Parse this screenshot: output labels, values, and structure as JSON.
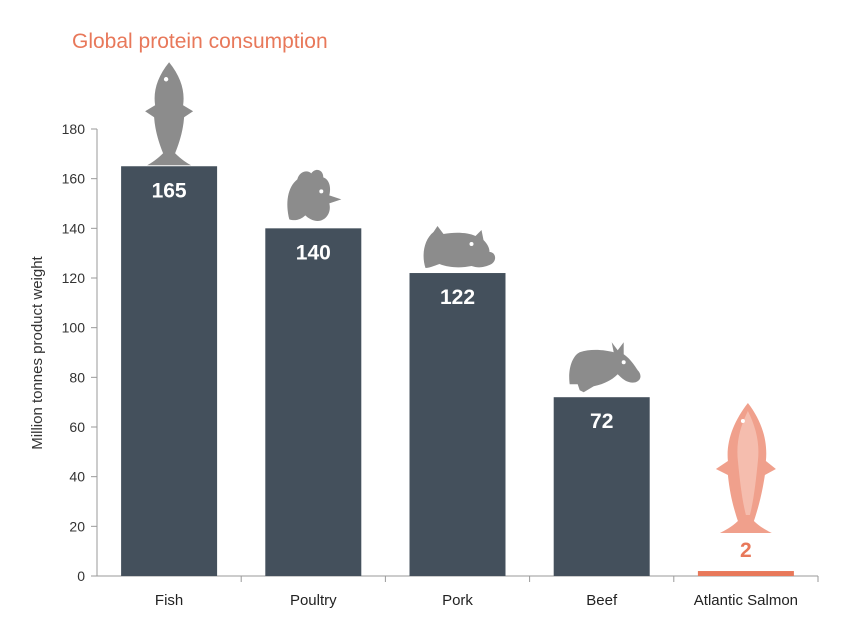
{
  "chart_data": {
    "type": "bar",
    "title": "Global protein consumption",
    "ylabel": "Million tonnes product weight",
    "xlabel": "",
    "categories": [
      "Fish",
      "Poultry",
      "Pork",
      "Beef",
      "Atlantic Salmon"
    ],
    "values": [
      165,
      140,
      122,
      72,
      2
    ],
    "value_labels": [
      "165",
      "140",
      "122",
      "72",
      "2"
    ],
    "ylim": [
      0,
      180
    ],
    "yticks": [
      "0",
      "20",
      "40",
      "60",
      "80",
      "100",
      "120",
      "140",
      "160",
      "180"
    ],
    "grid": false,
    "legend": "none",
    "colors": {
      "bar": "#44505c",
      "highlight_bar": "#e8785a",
      "title": "#e8785a",
      "icon": "#8c8c8c",
      "salmon_icon": "#f0a08c"
    },
    "icons": [
      "fish-icon",
      "chicken-icon",
      "pig-icon",
      "cow-icon",
      "salmon-icon"
    ]
  }
}
